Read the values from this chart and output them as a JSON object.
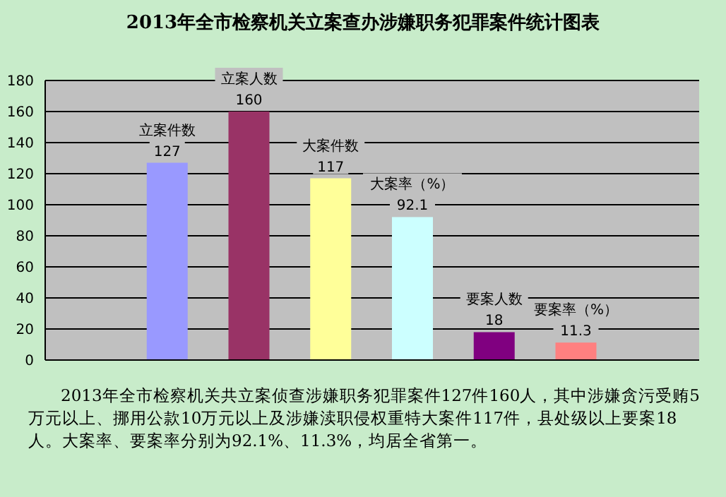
{
  "chart_data": {
    "type": "bar",
    "title": "2013年全市检察机关立案查办涉嫌职务犯罪案件统计图表",
    "categories": [
      null,
      "立案件数",
      "立案人数",
      "大案件数",
      "大案率（%）",
      "要案人数",
      "要案率（%）",
      null
    ],
    "values": [
      null,
      127,
      160,
      117,
      92.1,
      18,
      11.3,
      null
    ],
    "colors": [
      "#9999ff",
      "#9999ff",
      "#993366",
      "#ffff99",
      "#ccffff",
      "#800080",
      "#ff8080",
      "#ff8080"
    ],
    "ylim": [
      0,
      180
    ],
    "yticks": [
      0,
      20,
      40,
      60,
      80,
      100,
      120,
      140,
      160,
      180
    ],
    "grid": "y",
    "data_labels": true,
    "legend": false,
    "annotations": [
      "2013年全市检察机关共立案侦查涉嫌职务犯罪案件127件160人，其中涉嫌贪污受贿5万元以上、挪用公款10万元以上及涉嫌渎职侵权重特大案件117件，县处级以上要案18人。大案率、要案率分别为92.1%、11.3%，均居全省第一。"
    ]
  }
}
